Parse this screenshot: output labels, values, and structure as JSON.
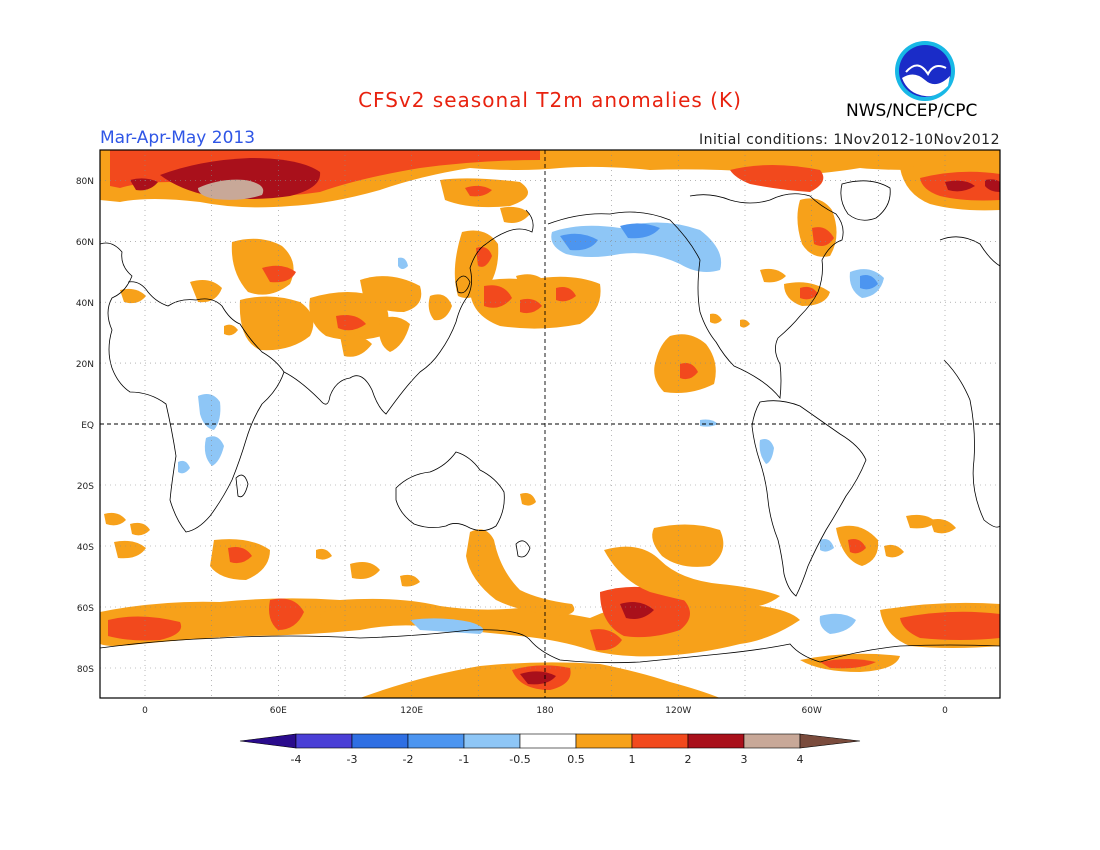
{
  "header": {
    "title": "CFSv2 seasonal T2m anomalies (K)",
    "season": "Mar-Apr-May 2013",
    "initial_conditions": "Initial conditions: 1Nov2012-10Nov2012",
    "agency": "NWS/NCEP/CPC",
    "logo_text": "NOAA"
  },
  "axes": {
    "lat_labels": [
      "80N",
      "60N",
      "40N",
      "20N",
      "EQ",
      "20S",
      "40S",
      "60S",
      "80S"
    ],
    "lon_labels": [
      "0",
      "60E",
      "120E",
      "180",
      "120W",
      "60W",
      "0"
    ]
  },
  "colorbar": {
    "labels": [
      "-4",
      "-3",
      "-2",
      "-1",
      "-0.5",
      "0.5",
      "1",
      "2",
      "3",
      "4"
    ],
    "colors": [
      "#2a0b8c",
      "#4a3fd6",
      "#2f6fe3",
      "#4c95f0",
      "#8ec6f6",
      "#ffffff",
      "#f7a11a",
      "#f2491d",
      "#a9101b",
      "#c8a898",
      "#7a4b3c"
    ]
  },
  "map_colors": {
    "warm_05": "#f7a11a",
    "warm_1": "#f2491d",
    "warm_2": "#a9101b",
    "warm_3": "#c8a898",
    "cool_05": "#8ec6f6",
    "cool_1": "#4c95f0"
  }
}
